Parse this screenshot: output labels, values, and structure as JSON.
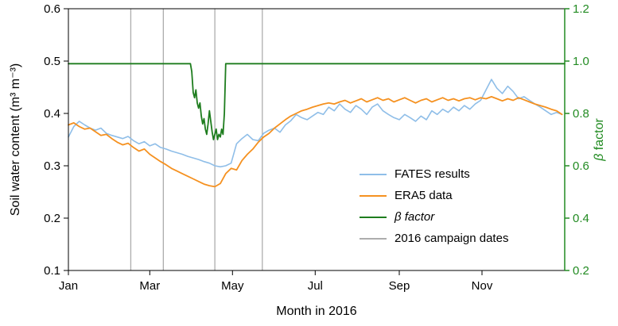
{
  "chart_data": {
    "type": "line",
    "title": "",
    "x_axis": {
      "label": "Month in 2016",
      "min": 0,
      "max": 366,
      "ticks": [
        {
          "day": 0,
          "label": "Jan"
        },
        {
          "day": 60,
          "label": "Mar"
        },
        {
          "day": 121,
          "label": "May"
        },
        {
          "day": 182,
          "label": "Jul"
        },
        {
          "day": 244,
          "label": "Sep"
        },
        {
          "day": 305,
          "label": "Nov"
        }
      ]
    },
    "left_axis": {
      "label": "Soil water content (m³ m⁻³)",
      "min": 0.1,
      "max": 0.6,
      "ticks": [
        0.1,
        0.2,
        0.3,
        0.4,
        0.5,
        0.6
      ],
      "color": "#000000"
    },
    "right_axis": {
      "label_symbol": "β",
      "label_rest": " factor",
      "min": 0.2,
      "max": 1.2,
      "ticks": [
        0.2,
        0.4,
        0.6,
        0.8,
        1.0,
        1.2
      ],
      "color": "#228B22"
    },
    "series": [
      {
        "name": "FATES results",
        "color": "#8FBEE8",
        "axis": "left",
        "width": 1.6,
        "x0": 0,
        "dx": 4,
        "values": [
          0.355,
          0.375,
          0.385,
          0.378,
          0.372,
          0.368,
          0.372,
          0.362,
          0.358,
          0.355,
          0.352,
          0.356,
          0.348,
          0.342,
          0.346,
          0.338,
          0.342,
          0.335,
          0.332,
          0.328,
          0.325,
          0.322,
          0.318,
          0.315,
          0.312,
          0.308,
          0.305,
          0.3,
          0.298,
          0.3,
          0.305,
          0.342,
          0.352,
          0.36,
          0.35,
          0.348,
          0.362,
          0.368,
          0.372,
          0.364,
          0.378,
          0.386,
          0.398,
          0.392,
          0.388,
          0.395,
          0.402,
          0.398,
          0.412,
          0.405,
          0.418,
          0.408,
          0.402,
          0.415,
          0.408,
          0.398,
          0.412,
          0.418,
          0.405,
          0.398,
          0.392,
          0.388,
          0.398,
          0.392,
          0.385,
          0.395,
          0.388,
          0.405,
          0.398,
          0.408,
          0.402,
          0.412,
          0.405,
          0.415,
          0.408,
          0.418,
          0.425,
          0.445,
          0.465,
          0.448,
          0.438,
          0.452,
          0.442,
          0.428,
          0.432,
          0.425,
          0.418,
          0.412,
          0.405,
          0.398,
          0.402,
          0.398
        ]
      },
      {
        "name": "ERA5 data",
        "color": "#F59120",
        "axis": "left",
        "width": 1.8,
        "x0": 0,
        "dx": 4,
        "values": [
          0.378,
          0.382,
          0.375,
          0.37,
          0.372,
          0.365,
          0.358,
          0.36,
          0.352,
          0.345,
          0.34,
          0.343,
          0.335,
          0.328,
          0.332,
          0.322,
          0.315,
          0.308,
          0.302,
          0.295,
          0.29,
          0.285,
          0.28,
          0.275,
          0.27,
          0.265,
          0.262,
          0.26,
          0.266,
          0.285,
          0.295,
          0.292,
          0.31,
          0.322,
          0.332,
          0.345,
          0.355,
          0.362,
          0.372,
          0.38,
          0.388,
          0.395,
          0.4,
          0.405,
          0.408,
          0.412,
          0.415,
          0.418,
          0.42,
          0.418,
          0.422,
          0.425,
          0.42,
          0.424,
          0.428,
          0.422,
          0.426,
          0.43,
          0.425,
          0.428,
          0.422,
          0.426,
          0.43,
          0.425,
          0.42,
          0.425,
          0.428,
          0.422,
          0.426,
          0.43,
          0.425,
          0.428,
          0.424,
          0.428,
          0.43,
          0.426,
          0.43,
          0.428,
          0.432,
          0.428,
          0.424,
          0.428,
          0.425,
          0.43,
          0.426,
          0.422,
          0.418,
          0.415,
          0.412,
          0.408,
          0.405,
          0.398
        ]
      },
      {
        "name": "β factor",
        "color": "#1E7D1E",
        "axis": "right",
        "width": 1.8,
        "points": [
          [
            0,
            0.99
          ],
          [
            90,
            0.99
          ],
          [
            91,
            0.96
          ],
          [
            92,
            0.88
          ],
          [
            93,
            0.86
          ],
          [
            94,
            0.89
          ],
          [
            95,
            0.84
          ],
          [
            96,
            0.82
          ],
          [
            97,
            0.84
          ],
          [
            98,
            0.79
          ],
          [
            99,
            0.76
          ],
          [
            100,
            0.78
          ],
          [
            101,
            0.74
          ],
          [
            102,
            0.72
          ],
          [
            103,
            0.76
          ],
          [
            104,
            0.81
          ],
          [
            105,
            0.77
          ],
          [
            106,
            0.73
          ],
          [
            107,
            0.7
          ],
          [
            108,
            0.72
          ],
          [
            109,
            0.74
          ],
          [
            110,
            0.7
          ],
          [
            111,
            0.72
          ],
          [
            112,
            0.71
          ],
          [
            113,
            0.74
          ],
          [
            114,
            0.72
          ],
          [
            115,
            0.8
          ],
          [
            116,
            0.99
          ],
          [
            366,
            0.99
          ]
        ]
      }
    ],
    "campaign": {
      "label": "2016 campaign dates",
      "color": "#ADADAD",
      "days": [
        46,
        70,
        108,
        143
      ]
    }
  }
}
